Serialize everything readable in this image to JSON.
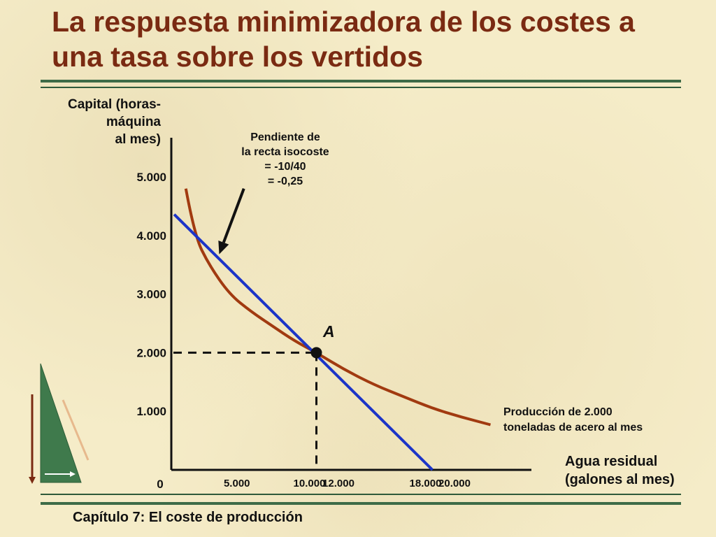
{
  "slide": {
    "title": "La respuesta minimizadora de los costes a una tasa sobre los vertidos",
    "footer": "Capítulo 7: El coste de producción"
  },
  "colors": {
    "title": "#7a2a12",
    "isocost": "#1c34c8",
    "isoquant": "#a13a10",
    "rule": "#3d6b47"
  },
  "chart_data": {
    "type": "line",
    "title": "",
    "ylabel": "Capital (horas-\nmáquina\nal mes)",
    "xlabel": "Agua residual\n(galones al mes)",
    "origin_label": "0",
    "x_ticks": [
      {
        "value": 5000,
        "label": "5.000"
      },
      {
        "value": 10000,
        "label": "10.000"
      },
      {
        "value": 12000,
        "label": "12.000"
      },
      {
        "value": 18000,
        "label": "18.000"
      },
      {
        "value": 20000,
        "label": "20.000"
      }
    ],
    "y_ticks": [
      {
        "value": 1000,
        "label": "1.000"
      },
      {
        "value": 2000,
        "label": "2.000"
      },
      {
        "value": 3000,
        "label": "3.000"
      },
      {
        "value": 4000,
        "label": "4.000"
      },
      {
        "value": 5000,
        "label": "5.000"
      }
    ],
    "xlim": [
      0,
      23000
    ],
    "ylim": [
      0,
      5500
    ],
    "isocost": {
      "x": [
        200,
        18000
      ],
      "y": [
        4360,
        0
      ]
    },
    "isoquant": {
      "label": "Producción de 2.000\ntoneladas de acero al mes",
      "x": [
        1000,
        1600,
        2600,
        4000,
        5500,
        7000,
        8500,
        10000,
        12000,
        14000,
        16000,
        18000,
        20000,
        22000
      ],
      "y": [
        4800,
        4000,
        3500,
        3000,
        2700,
        2450,
        2200,
        2000,
        1700,
        1450,
        1250,
        1050,
        900,
        770
      ]
    },
    "point": {
      "label": "A",
      "x": 10000,
      "y": 2000
    },
    "annotation": {
      "text": "Pendiente de\nla recta isocoste\n= -10/40\n= -0,25",
      "arrow_from": {
        "x": 5000,
        "y": 4800
      },
      "arrow_to": {
        "x": 3300,
        "y": 3680
      }
    }
  }
}
